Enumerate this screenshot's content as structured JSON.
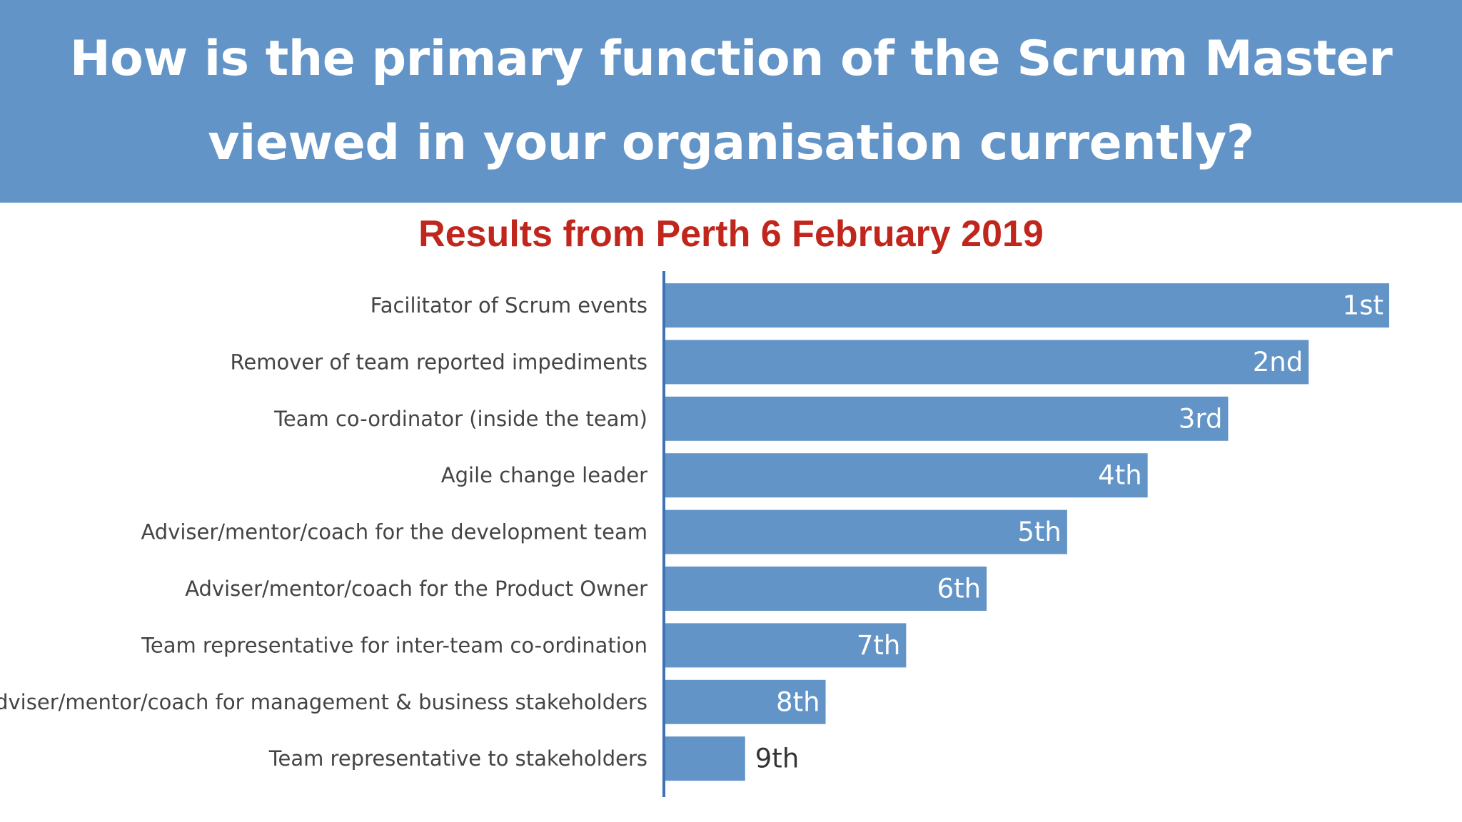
{
  "header": {
    "title_line_1": "How is the primary function of the Scrum Master",
    "title_line_2": "viewed in your organisation currently?"
  },
  "subtitle": "Results from Perth 6 February 2019",
  "colors": {
    "banner": "#6394c7",
    "bar": "#6394c7",
    "subtitle": "#c0261c",
    "axis": "#3f72b3",
    "label_inside": "#ffffff",
    "label_outside": "#333333"
  },
  "chart_data": {
    "type": "bar",
    "orientation": "horizontal",
    "title": "How is the primary function of the Scrum Master viewed in your organisation currently?",
    "subtitle": "Results from Perth 6 February 2019",
    "categories": [
      "Facilitator of Scrum events",
      "Remover of team reported impediments",
      "Team co-ordinator (inside the team)",
      "Agile change leader",
      "Adviser/mentor/coach for the development team",
      "Adviser/mentor/coach for the Product Owner",
      "Team representative for inter-team co-ordination",
      "Adviser/mentor/coach for management & business stakeholders",
      "Team representative to stakeholders"
    ],
    "values": [
      9,
      8,
      7,
      6,
      5,
      4,
      3,
      2,
      1
    ],
    "data_labels": [
      "1st",
      "2nd",
      "3rd",
      "4th",
      "5th",
      "6th",
      "7th",
      "8th",
      "9th"
    ],
    "xlim": [
      0,
      9
    ],
    "xlabel": "",
    "ylabel": "",
    "grid": false,
    "legend": "none"
  }
}
